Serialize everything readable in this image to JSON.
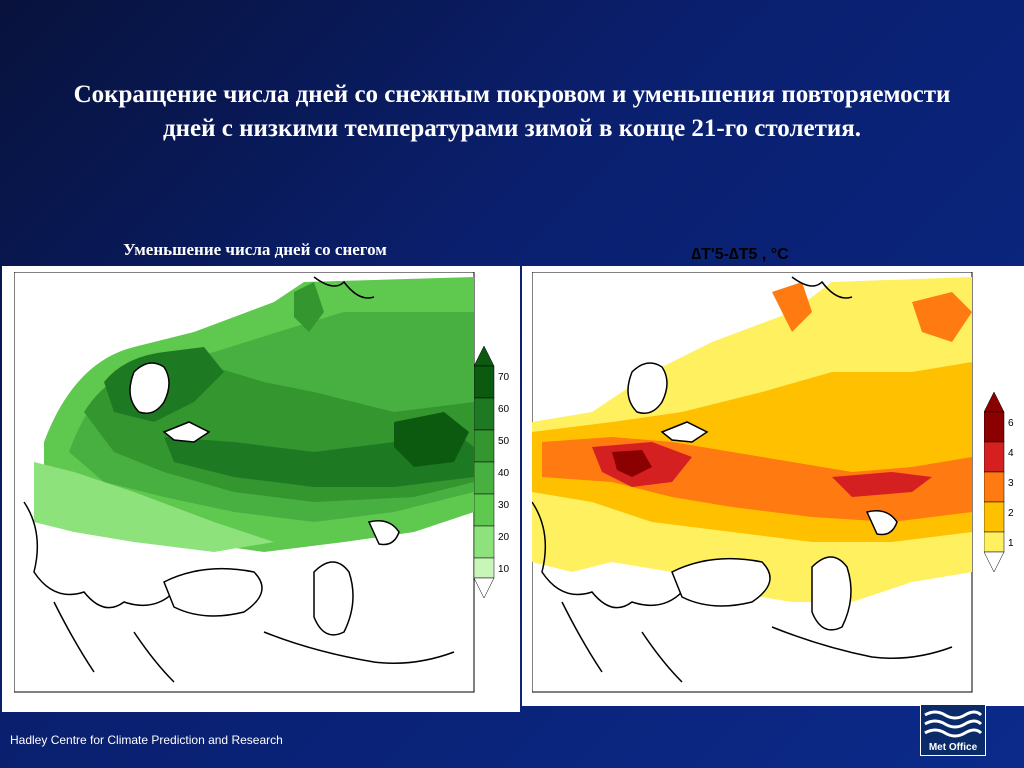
{
  "title": "Сокращение числа дней со снежным покровом и уменьшения повторяемости дней с низкими температурами зимой в конце 21-го столетия.",
  "left_panel": {
    "caption": "Уменьшение числа дней со снегом",
    "colorbar_labels": [
      "70",
      "60",
      "50",
      "40",
      "30",
      "20",
      "10"
    ],
    "colorbar_colors": [
      "#0b5a10",
      "#1e7a22",
      "#33962f",
      "#48b040",
      "#5fc94f",
      "#8ee27c",
      "#c8f5b8"
    ]
  },
  "right_panel": {
    "caption": "∆T'5-∆T5 , °C",
    "colorbar_labels": [
      "6",
      "4",
      "3",
      "2",
      "1"
    ],
    "colorbar_colors": [
      "#8b0000",
      "#d42020",
      "#ff7a10",
      "#ffc000",
      "#fff060"
    ]
  },
  "footer": {
    "text": "Hadley Centre for Climate Prediction and Research"
  },
  "logo": {
    "label": "Met Office"
  }
}
